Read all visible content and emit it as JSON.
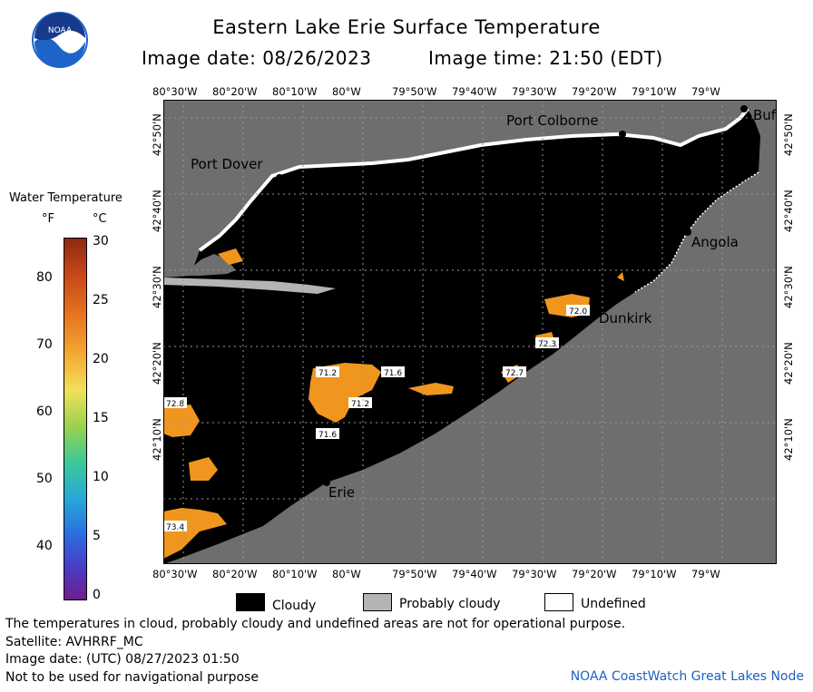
{
  "header": {
    "title": "Eastern Lake Erie Surface Temperature",
    "image_date": "Image date: 08/26/2023",
    "image_time": "Image time: 21:50 (EDT)"
  },
  "logo": {
    "text": "NOAA",
    "color": "#1e64c8"
  },
  "map": {
    "colors": {
      "land": "#6e6e6e",
      "cloud": "#000000",
      "probably_cloudy": "#b4b4b4",
      "undefined": "#ffffff",
      "warm_water": "#f0961e"
    },
    "longitude_labels": [
      "80°30'W",
      "80°20'W",
      "80°10'W",
      "80°W",
      "79°50'W",
      "79°40'W",
      "79°30'W",
      "79°20'W",
      "79°10'W",
      "79°W"
    ],
    "latitude_labels": [
      "42°50'N",
      "42°40'N",
      "42°30'N",
      "42°20'N",
      "42°10'N"
    ],
    "places": [
      "Port Colborne",
      "Port Dover",
      "Angola",
      "Dunkirk",
      "Erie",
      "Buf"
    ],
    "temperature_labels": [
      "72.0",
      "72.3",
      "72.7",
      "71.2",
      "71.6",
      "71.2",
      "71.6",
      "72.8",
      "73.4"
    ]
  },
  "legend": {
    "title": "Water Temperature",
    "unit_f": "°F",
    "unit_c": "°C",
    "f_ticks": [
      "80",
      "70",
      "60",
      "50",
      "40"
    ],
    "c_ticks": [
      "30",
      "25",
      "20",
      "15",
      "10",
      "5",
      "0"
    ],
    "cloudy": "Cloudy",
    "probably_cloudy": "Probably cloudy",
    "undefined": "Undefined"
  },
  "footer": {
    "note": "The temperatures in cloud, probably cloudy and undefined areas are not for operational purpose.",
    "satellite": "Satellite: AVHRRF_MC",
    "utc_date": "Image date: (UTC) 08/27/2023  01:50",
    "nav_warning": "Not to be used for navigational purpose",
    "credit": "NOAA CoastWatch Great Lakes Node"
  }
}
